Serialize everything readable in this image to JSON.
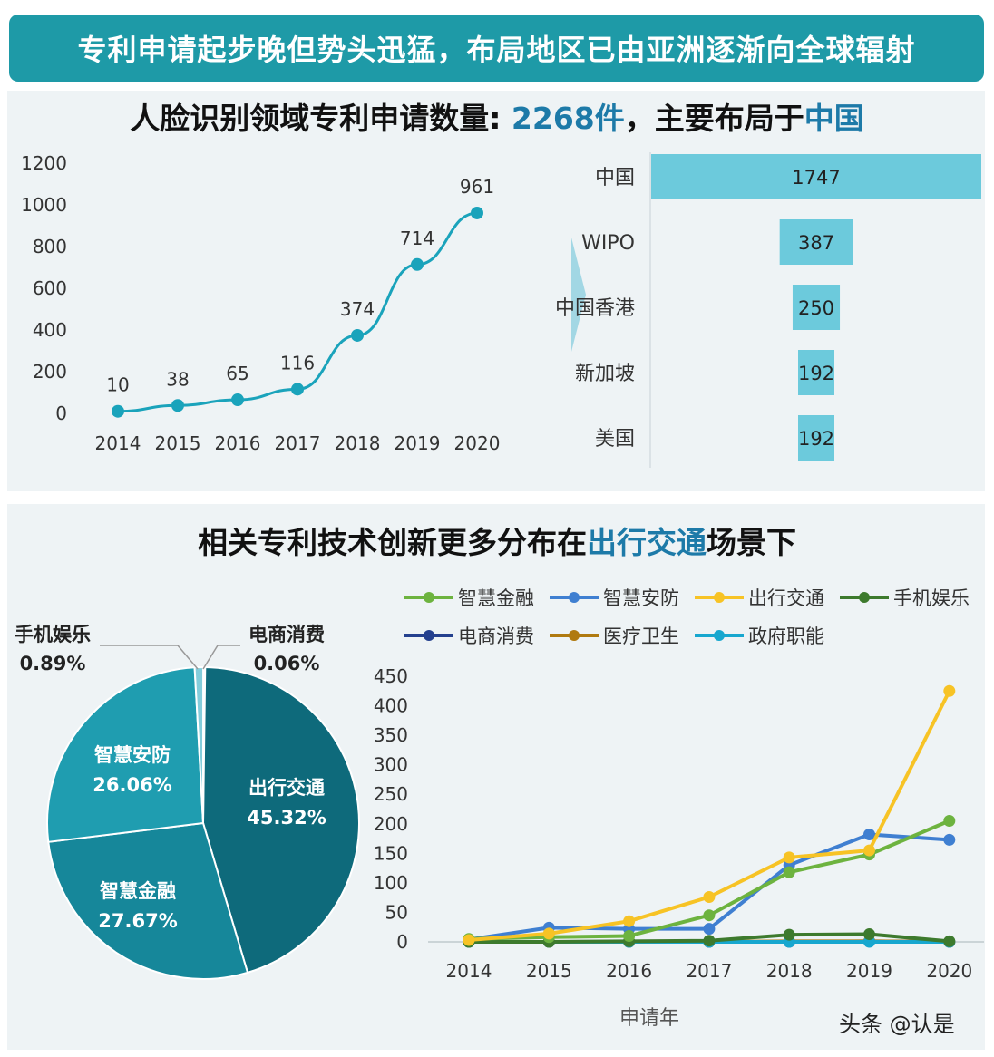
{
  "banner": {
    "title": "专利申请起步晚但势头迅猛，布局地区已由亚洲逐渐向全球辐射"
  },
  "title1": {
    "prefix": "人脸识别领域专利申请数量: ",
    "count": "2268件",
    "middle": "，主要布局于",
    "region": "中国"
  },
  "title2": {
    "prefix": "相关专利技术创新更多分布在",
    "highlight": "出行交通",
    "suffix": "场景下"
  },
  "colors": {
    "teal": "#1aa3bb",
    "bar": "#6ccadc",
    "dark_teal": "#0f6b7e"
  },
  "chart_data": [
    {
      "type": "line",
      "x": [
        "2014",
        "2015",
        "2016",
        "2017",
        "2018",
        "2019",
        "2020"
      ],
      "values": [
        10,
        38,
        65,
        116,
        374,
        714,
        961
      ],
      "ylim": [
        0,
        1200
      ],
      "yticks": [
        "0",
        "200",
        "400",
        "600",
        "800",
        "1000",
        "1200"
      ],
      "color": "#1aa3bb",
      "grid": false
    },
    {
      "type": "bar",
      "orientation": "horizontal",
      "categories": [
        "中国",
        "WIPO",
        "中国香港",
        "新加坡",
        "美国"
      ],
      "values": [
        1747,
        387,
        250,
        192,
        192
      ],
      "color": "#6ccadc"
    },
    {
      "type": "pie",
      "slices": [
        {
          "label": "出行交通",
          "pct": "45.32%",
          "value": 45.32,
          "color": "#0e6a7b"
        },
        {
          "label": "智慧金融",
          "pct": "27.67%",
          "value": 27.67,
          "color": "#16879a"
        },
        {
          "label": "智慧安防",
          "pct": "26.06%",
          "value": 26.06,
          "color": "#1f9db0"
        },
        {
          "label": "手机娱乐",
          "pct": "0.89%",
          "value": 0.89,
          "color": "#84cddb"
        },
        {
          "label": "电商消费",
          "pct": "0.06%",
          "value": 0.06,
          "color": "#c7e6ec"
        }
      ]
    },
    {
      "type": "line",
      "x": [
        "2014",
        "2015",
        "2016",
        "2017",
        "2018",
        "2019",
        "2020"
      ],
      "xlabel": "申请年",
      "ylim": [
        0,
        450
      ],
      "yticks": [
        "0",
        "50",
        "100",
        "150",
        "200",
        "250",
        "300",
        "350",
        "400",
        "450"
      ],
      "legend": "top",
      "series": [
        {
          "name": "智慧金融",
          "color": "#6db33f",
          "values": [
            5,
            8,
            10,
            45,
            118,
            148,
            205
          ]
        },
        {
          "name": "智慧安防",
          "color": "#3f7fd1",
          "values": [
            4,
            24,
            22,
            22,
            130,
            182,
            173
          ]
        },
        {
          "name": "出行交通",
          "color": "#f7c325",
          "values": [
            3,
            14,
            35,
            76,
            143,
            155,
            425
          ]
        },
        {
          "name": "手机娱乐",
          "color": "#3d7a2d",
          "values": [
            0,
            0,
            1,
            2,
            12,
            13,
            1
          ]
        },
        {
          "name": "电商消费",
          "color": "#24408e",
          "values": [
            0,
            0,
            0,
            0,
            0,
            1,
            0
          ]
        },
        {
          "name": "医疗卫生",
          "color": "#b07a10",
          "values": [
            0,
            0,
            0,
            0,
            1,
            1,
            0
          ]
        },
        {
          "name": "政府职能",
          "color": "#17a7cf",
          "values": [
            0,
            0,
            0,
            0,
            0,
            0,
            0
          ]
        }
      ]
    }
  ],
  "watermark": "头条 @认是"
}
